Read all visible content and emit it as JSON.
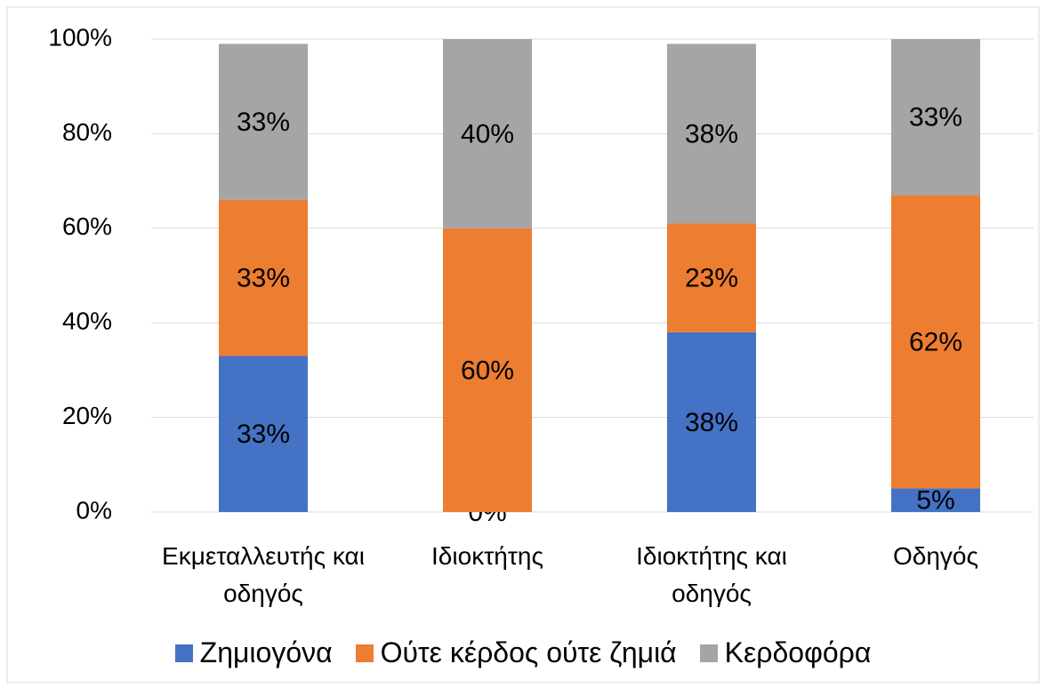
{
  "chart_data": {
    "type": "stacked_bar",
    "categories": [
      "Εκμεταλλευτής και οδηγός",
      "Ιδιοκτήτης",
      "Ιδιοκτήτης και οδηγός",
      "Οδηγός"
    ],
    "series": [
      {
        "name": "Ζημιογόνα",
        "color": "#4472c4",
        "values": [
          33,
          0,
          38,
          5
        ],
        "value_labels": [
          "33%",
          "0%",
          "38%",
          "5%"
        ]
      },
      {
        "name": "Ούτε κέρδος ούτε ζημιά",
        "color": "#ed7d31",
        "values": [
          33,
          60,
          23,
          62
        ],
        "value_labels": [
          "33%",
          "60%",
          "23%",
          "62%"
        ]
      },
      {
        "name": "Κερδοφόρα",
        "color": "#a5a5a5",
        "values": [
          33,
          40,
          38,
          33
        ],
        "value_labels": [
          "33%",
          "40%",
          "38%",
          "33%"
        ]
      }
    ],
    "ylim": [
      0,
      100
    ],
    "yticks": [
      {
        "value": 0,
        "label": "0%"
      },
      {
        "value": 20,
        "label": "20%"
      },
      {
        "value": 40,
        "label": "40%"
      },
      {
        "value": 60,
        "label": "60%"
      },
      {
        "value": 80,
        "label": "80%"
      },
      {
        "value": 100,
        "label": "100%"
      }
    ],
    "grid": true,
    "legend": "bottom"
  }
}
